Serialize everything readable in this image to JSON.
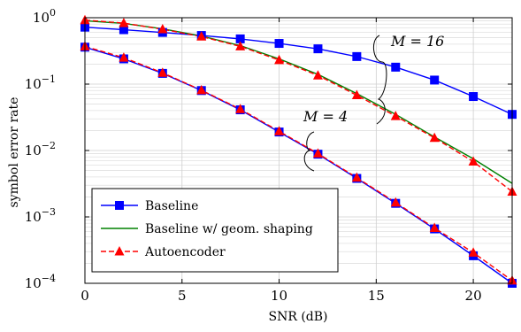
{
  "chart_data": {
    "type": "line",
    "xlabel": "SNR (dB)",
    "ylabel": "symbol error rate",
    "xlim": [
      0,
      22
    ],
    "ylim": [
      0.0001,
      1
    ],
    "yscale": "log",
    "grid": true,
    "legend_position": "bottom-left",
    "x_ticks": [
      "0",
      "5",
      "10",
      "15",
      "20"
    ],
    "y_ticks": [
      {
        "base": "10",
        "exp": "0"
      },
      {
        "base": "10",
        "exp": "−1"
      },
      {
        "base": "10",
        "exp": "−2"
      },
      {
        "base": "10",
        "exp": "−3"
      },
      {
        "base": "10",
        "exp": "−4"
      }
    ],
    "annotations": [
      {
        "label": "M = 16"
      },
      {
        "label": "M = 4"
      }
    ],
    "series": [
      {
        "name": "Baseline",
        "color": "#0000ff",
        "marker": "square",
        "dash": "solid",
        "x": [
          0,
          2,
          4,
          6,
          8,
          10,
          12,
          14,
          16,
          18,
          20,
          22
        ],
        "y": [
          0.72,
          0.66,
          0.6,
          0.54,
          0.48,
          0.41,
          0.34,
          0.26,
          0.18,
          0.115,
          0.065,
          0.035
        ]
      },
      {
        "name": "Baseline w/ geom. shaping",
        "color": "#008000",
        "marker": "none",
        "dash": "solid",
        "x": [
          0,
          2,
          4,
          6,
          8,
          10,
          12,
          14,
          16,
          18,
          20,
          22
        ],
        "y": [
          0.9,
          0.82,
          0.68,
          0.53,
          0.38,
          0.24,
          0.14,
          0.072,
          0.035,
          0.016,
          0.0075,
          0.0032
        ]
      },
      {
        "name": "Autoencoder",
        "color": "#ff0000",
        "marker": "triangle",
        "dash": "dashed",
        "x": [
          0,
          2,
          4,
          6,
          8,
          10,
          12,
          14,
          16,
          18,
          20,
          22
        ],
        "y": [
          0.92,
          0.83,
          0.67,
          0.52,
          0.37,
          0.23,
          0.135,
          0.068,
          0.033,
          0.0155,
          0.0068,
          0.0024
        ]
      },
      {
        "name": "",
        "color": "#0000ff",
        "marker": "square",
        "dash": "solid",
        "x": [
          0,
          2,
          4,
          6,
          8,
          10,
          12,
          14,
          16,
          18,
          20,
          22
        ],
        "y": [
          0.36,
          0.24,
          0.145,
          0.08,
          0.041,
          0.019,
          0.0088,
          0.0038,
          0.0016,
          0.00066,
          0.00026,
          0.0001
        ]
      },
      {
        "name": "",
        "color": "#ff0000",
        "marker": "triangle",
        "dash": "dashed",
        "x": [
          0,
          2,
          4,
          6,
          8,
          10,
          12,
          14,
          16,
          18,
          20,
          22
        ],
        "y": [
          0.37,
          0.25,
          0.148,
          0.081,
          0.042,
          0.0195,
          0.009,
          0.0039,
          0.00165,
          0.00068,
          0.00029,
          0.00011
        ]
      }
    ]
  }
}
